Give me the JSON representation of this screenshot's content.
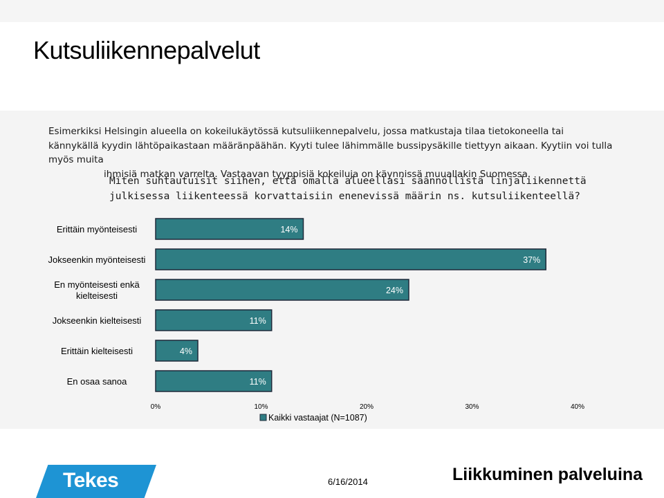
{
  "slide": {
    "title": "Kutsuliikennepalvelut",
    "intro_line_1": "Esimerkiksi Helsingin alueella on kokeilukäytössä kutsuliikennepalvelu, jossa matkustaja tilaa tietokoneella tai kännykällä kyydin lähtöpaikastaan määränpäähän. Kyyti tulee lähimmälle bussipysäkille tiettyyn aikaan. Kyytiin voi tulla myös muita",
    "intro_line_2": "ihmisiä matkan varrelta. Vastaavan tyyppisiä kokeiluja on käynnissä muuallakin Suomessa.",
    "question": "Miten suhtautuisit siihen, että omalla alueellasi säännöllistä linjaliikennettä julkisessa liikenteessä korvattaisiin enenevissä määrin ns. kutsuliikenteellä?"
  },
  "chart_data": {
    "type": "bar",
    "orientation": "horizontal",
    "categories": [
      "Erittäin myönteisesti",
      "Jokseenkin myönteisesti",
      "En myönteisesti enkä kielteisesti",
      "Jokseenkin kielteisesti",
      "Erittäin kielteisesti",
      "En osaa sanoa"
    ],
    "series": [
      {
        "name": "Kaikki vastaajat (N=1087)",
        "values": [
          14,
          37,
          24,
          11,
          4,
          11
        ],
        "value_labels": [
          "14%",
          "37%",
          "24%",
          "11%",
          "4%",
          "11%"
        ]
      }
    ],
    "xlim": [
      0,
      40
    ],
    "xticks": [
      0,
      10,
      20,
      30,
      40
    ],
    "xtick_labels": [
      "0%",
      "10%",
      "20%",
      "30%",
      "40%"
    ],
    "grid": false,
    "legend": "bottom",
    "colors": {
      "bar": "#2f7d83",
      "bar_border": "#1f2a3a"
    }
  },
  "footer": {
    "logo": "Tekes",
    "date": "6/16/2014",
    "brand": "Liikkuminen palveluina"
  }
}
